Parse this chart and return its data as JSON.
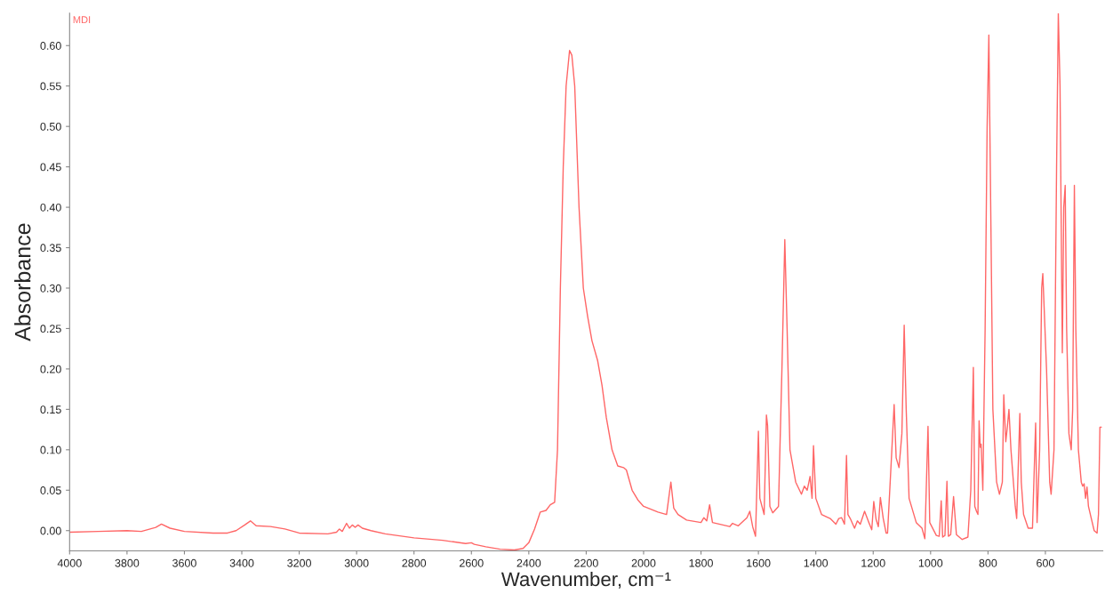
{
  "chart_data": {
    "type": "line",
    "xlabel": "Wavenumber, cm⁻¹",
    "ylabel": "Absorbance",
    "xlim": [
      4000,
      400
    ],
    "ylim": [
      -0.025,
      0.64
    ],
    "xticks": [
      4000,
      3800,
      3600,
      3400,
      3200,
      3000,
      2800,
      2600,
      2400,
      2200,
      2000,
      1800,
      1600,
      1400,
      1200,
      1000,
      800,
      600
    ],
    "yticks": [
      {
        "value": 0,
        "label": "0.00"
      },
      {
        "value": 0.05,
        "label": "0.05"
      },
      {
        "value": 0.1,
        "label": "0.10"
      },
      {
        "value": 0.15,
        "label": "0.15"
      },
      {
        "value": 0.2,
        "label": "0.20"
      },
      {
        "value": 0.25,
        "label": "0.25"
      },
      {
        "value": 0.3,
        "label": "0.30"
      },
      {
        "value": 0.35,
        "label": "0.35"
      },
      {
        "value": 0.4,
        "label": "0.40"
      },
      {
        "value": 0.45,
        "label": "0.45"
      },
      {
        "value": 0.5,
        "label": "0.50"
      },
      {
        "value": 0.55,
        "label": "0.55"
      },
      {
        "value": 0.6,
        "label": "0.60"
      }
    ],
    "grid": false,
    "marker": "none",
    "line_style": "solid",
    "series": [
      {
        "name": "MDI",
        "color": "#ff6666",
        "x": [
          4000,
          3900,
          3800,
          3750,
          3700,
          3680,
          3650,
          3600,
          3500,
          3450,
          3420,
          3390,
          3370,
          3350,
          3300,
          3250,
          3200,
          3100,
          3070,
          3060,
          3050,
          3035,
          3025,
          3015,
          3005,
          2995,
          2980,
          2950,
          2900,
          2800,
          2700,
          2620,
          2600,
          2590,
          2550,
          2500,
          2450,
          2420,
          2400,
          2380,
          2360,
          2340,
          2325,
          2310,
          2300,
          2290,
          2280,
          2270,
          2258,
          2250,
          2240,
          2225,
          2210,
          2195,
          2180,
          2160,
          2145,
          2130,
          2110,
          2090,
          2070,
          2060,
          2040,
          2020,
          2000,
          1950,
          1920,
          1905,
          1895,
          1880,
          1850,
          1800,
          1790,
          1780,
          1770,
          1760,
          1700,
          1690,
          1670,
          1640,
          1630,
          1620,
          1610,
          1600,
          1595,
          1580,
          1572,
          1568,
          1560,
          1550,
          1530,
          1518,
          1508,
          1500,
          1490,
          1470,
          1450,
          1440,
          1430,
          1420,
          1413,
          1408,
          1400,
          1380,
          1350,
          1330,
          1320,
          1310,
          1300,
          1293,
          1288,
          1280,
          1265,
          1255,
          1245,
          1230,
          1215,
          1205,
          1198,
          1190,
          1182,
          1175,
          1165,
          1155,
          1150,
          1135,
          1127,
          1120,
          1110,
          1100,
          1092,
          1085,
          1075,
          1050,
          1030,
          1020,
          1009,
          1003,
          980,
          970,
          963,
          958,
          950,
          943,
          938,
          930,
          920,
          910,
          890,
          870,
          860,
          851,
          846,
          840,
          835,
          831,
          827,
          824,
          818,
          810,
          803,
          797,
          792,
          783,
          770,
          760,
          750,
          745,
          738,
          732,
          727,
          720,
          705,
          700,
          689,
          684,
          676,
          660,
          645,
          634,
          629,
          620,
          613,
          609,
          596,
          585,
          580,
          570,
          561,
          555,
          549,
          541,
          536,
          531,
          526,
          518,
          510,
          505,
          499,
          494,
          485,
          475,
          470,
          465,
          460,
          455,
          450,
          440,
          430,
          420,
          415,
          410,
          405
        ],
        "values": [
          -0.002,
          -0.001,
          0.0,
          -0.001,
          0.004,
          0.008,
          0.003,
          -0.001,
          -0.003,
          -0.003,
          0.0,
          0.007,
          0.012,
          0.006,
          0.005,
          0.002,
          -0.003,
          -0.004,
          -0.002,
          0.002,
          -0.001,
          0.009,
          0.003,
          0.007,
          0.004,
          0.007,
          0.003,
          0.0,
          -0.004,
          -0.009,
          -0.012,
          -0.016,
          -0.015,
          -0.017,
          -0.02,
          -0.023,
          -0.024,
          -0.022,
          -0.015,
          0.002,
          0.023,
          0.025,
          0.032,
          0.035,
          0.1,
          0.3,
          0.45,
          0.55,
          0.594,
          0.588,
          0.55,
          0.4,
          0.3,
          0.265,
          0.235,
          0.21,
          0.18,
          0.14,
          0.1,
          0.08,
          0.078,
          0.075,
          0.05,
          0.038,
          0.03,
          0.023,
          0.02,
          0.06,
          0.028,
          0.02,
          0.013,
          0.01,
          0.016,
          0.012,
          0.032,
          0.01,
          0.005,
          0.009,
          0.006,
          0.016,
          0.024,
          0.005,
          -0.007,
          0.123,
          0.04,
          0.02,
          0.143,
          0.13,
          0.03,
          0.022,
          0.03,
          0.2,
          0.36,
          0.25,
          0.1,
          0.06,
          0.045,
          0.055,
          0.05,
          0.067,
          0.04,
          0.105,
          0.04,
          0.02,
          0.015,
          0.008,
          0.015,
          0.016,
          0.008,
          0.093,
          0.02,
          0.015,
          0.003,
          0.012,
          0.008,
          0.024,
          0.01,
          0.001,
          0.036,
          0.014,
          0.005,
          0.041,
          0.015,
          -0.003,
          -0.003,
          0.1,
          0.156,
          0.09,
          0.078,
          0.12,
          0.254,
          0.15,
          0.04,
          0.01,
          0.003,
          -0.01,
          0.129,
          0.01,
          -0.006,
          -0.007,
          0.037,
          -0.008,
          -0.006,
          0.061,
          -0.007,
          -0.005,
          0.042,
          -0.005,
          -0.011,
          -0.008,
          0.05,
          0.202,
          0.03,
          0.024,
          0.02,
          0.136,
          0.103,
          0.107,
          0.05,
          0.25,
          0.5,
          0.613,
          0.45,
          0.15,
          0.06,
          0.045,
          0.06,
          0.168,
          0.11,
          0.13,
          0.15,
          0.1,
          0.03,
          0.015,
          0.145,
          0.06,
          0.02,
          0.003,
          0.003,
          0.133,
          0.01,
          0.1,
          0.3,
          0.318,
          0.2,
          0.06,
          0.045,
          0.1,
          0.45,
          0.64,
          0.55,
          0.22,
          0.4,
          0.427,
          0.25,
          0.12,
          0.1,
          0.15,
          0.427,
          0.25,
          0.1,
          0.06,
          0.055,
          0.058,
          0.04,
          0.054,
          0.03,
          0.015,
          0.0,
          -0.003,
          0.02,
          0.128,
          0.128
        ]
      }
    ]
  }
}
